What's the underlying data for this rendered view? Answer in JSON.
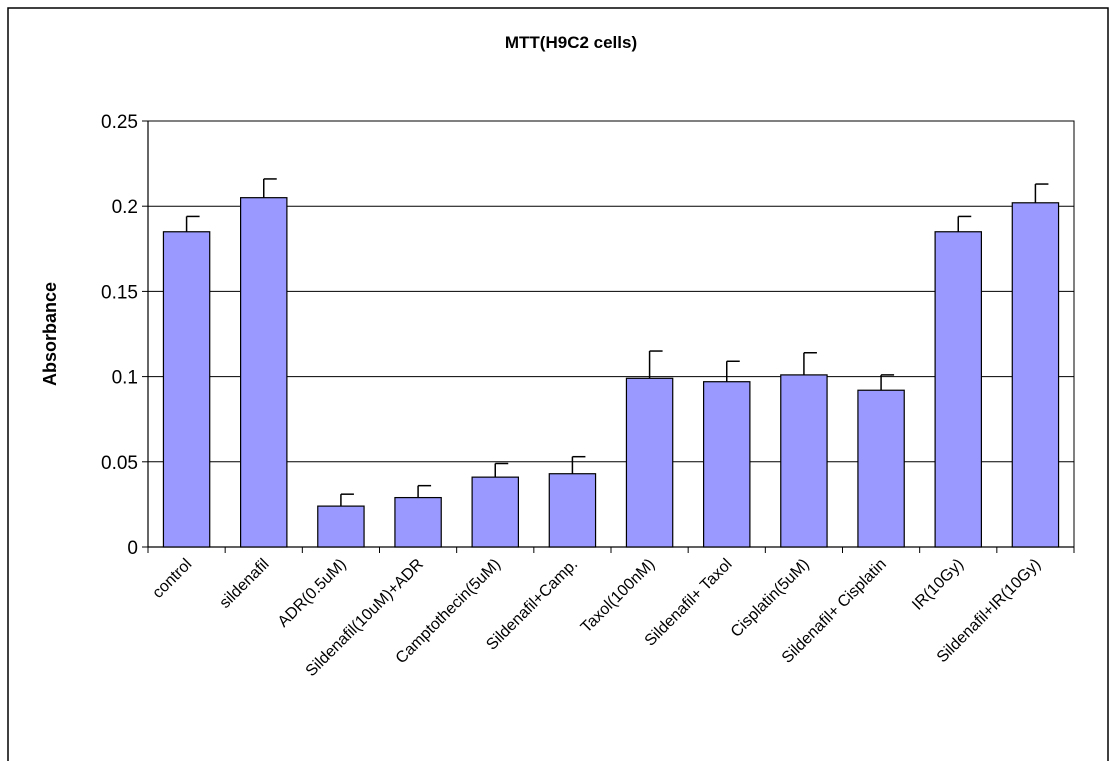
{
  "chart_data": {
    "type": "bar",
    "title": "MTT(H9C2 cells)",
    "xlabel": "",
    "ylabel": "Absorbance",
    "ylim": [
      0,
      0.25
    ],
    "yticks": [
      "0",
      "0.05",
      "0.1",
      "0.15",
      "0.2",
      "0.25"
    ],
    "ytick_values": [
      0,
      0.05,
      0.1,
      0.15,
      0.2,
      0.25
    ],
    "grid": true,
    "legend": "none",
    "bar_color": "#9999ff",
    "categories": [
      "control",
      "sildenafil",
      "ADR(0.5uM)",
      "Sildenafil(10uM)+ADR",
      "Camptothecin(5uM)",
      "Sildenafil+Camp.",
      "Taxol(100nM)",
      "Sildenafil+ Taxol",
      "Cisplatin(5uM)",
      "Sildenafil+ Cisplatin",
      "IR(10Gy)",
      "Sildenafil+IR(10Gy)"
    ],
    "values": [
      0.185,
      0.205,
      0.024,
      0.029,
      0.041,
      0.043,
      0.099,
      0.097,
      0.101,
      0.092,
      0.185,
      0.202
    ],
    "errors": [
      0.009,
      0.011,
      0.007,
      0.007,
      0.008,
      0.01,
      0.016,
      0.012,
      0.013,
      0.009,
      0.009,
      0.011
    ]
  }
}
